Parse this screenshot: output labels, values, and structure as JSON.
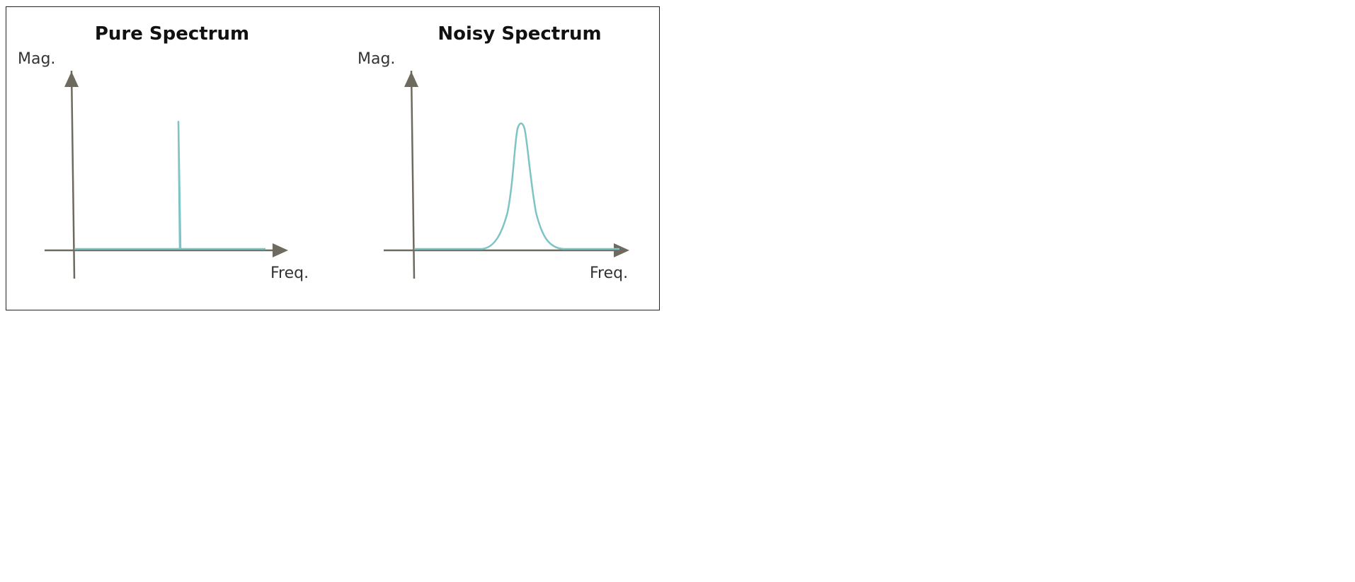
{
  "colors": {
    "axis": "#6f6a5f",
    "signal": "#7ec4c5",
    "border": "#222222"
  },
  "panels": [
    {
      "title": "Pure Spectrum",
      "ylabel": "Mag.",
      "xlabel": "Freq.",
      "signal_shape": "single-spike"
    },
    {
      "title": "Noisy Spectrum",
      "ylabel": "Mag.",
      "xlabel": "Freq.",
      "signal_shape": "broadened-peak"
    }
  ]
}
